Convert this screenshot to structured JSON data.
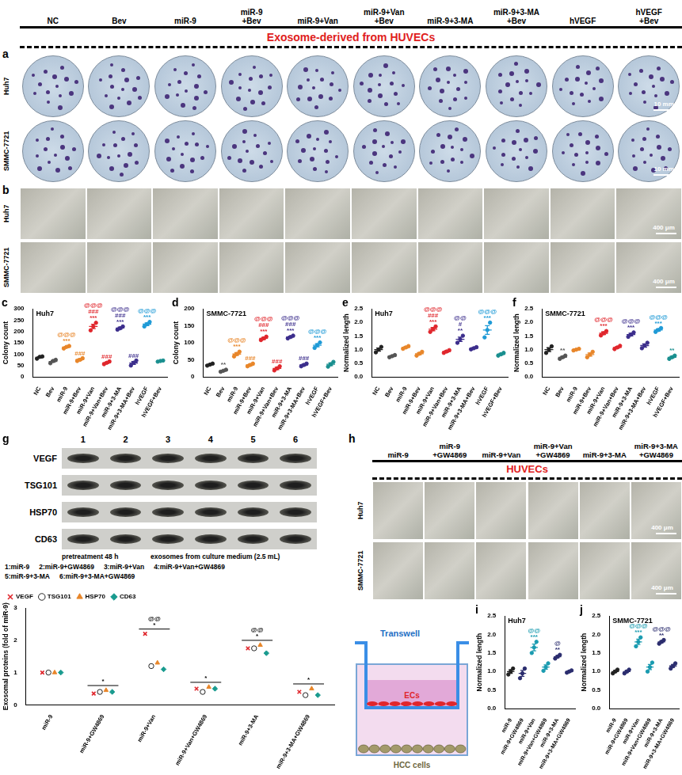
{
  "figure": {
    "groups": [
      "NC",
      "Bev",
      "miR-9",
      "miR-9\n+Bev",
      "miR-9+Van",
      "miR-9+Van\n+Bev",
      "miR-9+3-MA",
      "miR-9+3-MA\n+Bev",
      "hVEGF",
      "hVEGF\n+Bev"
    ],
    "banner": "Exosome-derived from HUVECs",
    "panel_a": {
      "letter": "a",
      "rows": [
        "Huh7",
        "SMMC-7721"
      ],
      "scale_bar": "10 mm"
    },
    "panel_b": {
      "letter": "b",
      "rows": [
        "Huh7",
        "SMMC-7721"
      ],
      "scale_bar": "400 μm"
    },
    "panel_g": {
      "lanes": [
        "1",
        "2",
        "3",
        "4",
        "5",
        "6"
      ],
      "proteins": [
        "VEGF",
        "TSG101",
        "HSP70",
        "CD63"
      ],
      "note": "pretreatment 48 h",
      "note2": "exosomes from culture medium (2.5 mL)",
      "key": [
        "1:miR-9",
        "2:miR-9+GW4869",
        "3:miR-9+Van",
        "4:miR-9+Van+GW4869",
        "5:miR-9+3-MA",
        "6:miR-9+3-MA+GW4869"
      ]
    },
    "panel_h": {
      "letter": "h",
      "groups": [
        "miR-9",
        "miR-9\n+GW4869",
        "miR-9+Van",
        "miR-9+Van\n+GW4869",
        "miR-9+3-MA",
        "miR-9+3-MA\n+GW4869"
      ],
      "banner": "HUVECs",
      "rows": [
        "Huh7",
        "SMMC-7721"
      ],
      "scale_bar": "400 μm",
      "schematic": {
        "transwell": "Transwell",
        "cells_top": "ECs",
        "cells_bottom": "HCC cells"
      }
    }
  },
  "chart_data": [
    {
      "panel": "c",
      "type": "scatter",
      "title": "Huh7",
      "y_label": "Colony count",
      "categories": [
        "NC",
        "Bev",
        "miR-9",
        "miR-9+Bev",
        "miR-9+Van",
        "miR-9+Van+Bev",
        "miR-9+3-MA",
        "miR-9+3-MA+Bev",
        "hVEGF",
        "hVEGF+Bev"
      ],
      "values": [
        86,
        68,
        131,
        76,
        222,
        62,
        215,
        61,
        232,
        70
      ],
      "errors": [
        3,
        4,
        3,
        3.5,
        9.5,
        3.5,
        4,
        6.5,
        6,
        1.5
      ],
      "points": [
        [
          80,
          88,
          90
        ],
        [
          60,
          70,
          75
        ],
        [
          125,
          132,
          136
        ],
        [
          70,
          75,
          82
        ],
        [
          205,
          222,
          238
        ],
        [
          56,
          62,
          68
        ],
        [
          208,
          214,
          222
        ],
        [
          50,
          62,
          72
        ],
        [
          222,
          232,
          242
        ],
        [
          67,
          70,
          72
        ]
      ],
      "colors": [
        "#222222",
        "#555555",
        "#e8862a",
        "#e8862a",
        "#e0262c",
        "#e0262c",
        "#3c2e8c",
        "#3c2e8c",
        "#1f9ad6",
        "#1a8f8f"
      ],
      "annotations": [
        [],
        [],
        [
          "@@@",
          "***"
        ],
        [
          "###"
        ],
        [
          "@@@",
          "###",
          "***"
        ],
        [
          "###"
        ],
        [
          "@@@",
          "###",
          "***"
        ],
        [
          "###"
        ],
        [
          "@@@",
          "***"
        ],
        []
      ],
      "ylim": [
        0,
        300
      ],
      "yticks": [
        0,
        50,
        100,
        150,
        200,
        250,
        300
      ],
      "grid": false
    },
    {
      "panel": "d",
      "type": "scatter",
      "title": "SMMC-7721",
      "y_label": "Colony count",
      "categories": [
        "NC",
        "Bev",
        "miR-9",
        "miR-9+Bev",
        "miR-9+Van",
        "miR-9+Van+Bev",
        "miR-9+3-MA",
        "miR-9+3-MA+Bev",
        "hVEGF",
        "hVEGF+Bev"
      ],
      "values": [
        36,
        18,
        67,
        35,
        113,
        25,
        117,
        35,
        93,
        37
      ],
      "errors": [
        1.7,
        1.7,
        4,
        2.3,
        3,
        3.5,
        2.3,
        2.3,
        4.6,
        4
      ],
      "points": [
        [
          33,
          36,
          39
        ],
        [
          15,
          18,
          21
        ],
        [
          60,
          67,
          74
        ],
        [
          31,
          35,
          39
        ],
        [
          108,
          113,
          118
        ],
        [
          19,
          25,
          31
        ],
        [
          113,
          117,
          121
        ],
        [
          31,
          35,
          39
        ],
        [
          85,
          93,
          101
        ],
        [
          30,
          37,
          44
        ]
      ],
      "colors": [
        "#222222",
        "#555555",
        "#e8862a",
        "#e8862a",
        "#e0262c",
        "#e0262c",
        "#3c2e8c",
        "#3c2e8c",
        "#1f9ad6",
        "#1a8f8f"
      ],
      "annotations": [
        [],
        [
          "**"
        ],
        [
          "@@@",
          "***"
        ],
        [
          "###"
        ],
        [
          "@@@",
          "###",
          "***"
        ],
        [
          "###"
        ],
        [
          "@@@",
          "###",
          "***"
        ],
        [
          "###"
        ],
        [
          "@@@",
          "***"
        ],
        []
      ],
      "ylim": [
        0,
        200
      ],
      "yticks": [
        0,
        50,
        100,
        150,
        200
      ],
      "grid": false
    },
    {
      "panel": "e",
      "type": "scatter",
      "title": "Huh7",
      "y_label": "Normalized length",
      "categories": [
        "NC",
        "Bev",
        "miR-9",
        "miR-9+Bev",
        "miR-9+Van",
        "miR-9+Van+Bev",
        "miR-9+3-MA",
        "miR-9+3-MA+Bev",
        "hVEGF",
        "hVEGF+Bev"
      ],
      "values": [
        1.0,
        0.76,
        1.08,
        0.85,
        1.75,
        0.93,
        1.38,
        1.05,
        1.72,
        0.83
      ],
      "errors": [
        0.06,
        0.02,
        0.03,
        0.04,
        0.06,
        0.03,
        0.08,
        0.02,
        0.16,
        0.03
      ],
      "points": [
        [
          0.9,
          1.0,
          1.1
        ],
        [
          0.72,
          0.76,
          0.8
        ],
        [
          1.03,
          1.08,
          1.13
        ],
        [
          0.78,
          0.85,
          0.92
        ],
        [
          1.65,
          1.75,
          1.85
        ],
        [
          0.88,
          0.93,
          0.98
        ],
        [
          1.25,
          1.38,
          1.51
        ],
        [
          1.01,
          1.05,
          1.09
        ],
        [
          1.45,
          1.72,
          1.99
        ],
        [
          0.78,
          0.83,
          0.88
        ]
      ],
      "colors": [
        "#222222",
        "#555555",
        "#e8862a",
        "#e8862a",
        "#e0262c",
        "#e0262c",
        "#3c2e8c",
        "#3c2e8c",
        "#1f9ad6",
        "#1a8f8f"
      ],
      "annotations": [
        [],
        [],
        [],
        [],
        [
          "@@@",
          "###",
          "***"
        ],
        [],
        [
          "@@",
          "#",
          "**"
        ],
        [],
        [
          "@@@",
          "***"
        ],
        []
      ],
      "ylim": [
        0,
        2.5
      ],
      "yticks": [
        {
          "value": 0,
          "label": "0.0"
        },
        0.5,
        {
          "value": 1,
          "label": "1.0"
        },
        1.5,
        {
          "value": 2,
          "label": "2.0"
        },
        2.5
      ],
      "grid": false
    },
    {
      "panel": "f",
      "type": "scatter",
      "title": "SMMC-7721",
      "y_label": "Normalized length",
      "categories": [
        "NC",
        "Bev",
        "miR-9",
        "miR-9+Bev",
        "miR-9+Van",
        "miR-9+Van+Bev",
        "miR-9+3-MA",
        "miR-9+3-MA+Bev",
        "hVEGF",
        "hVEGF+Bev"
      ],
      "values": [
        1.0,
        0.72,
        1.0,
        0.82,
        1.6,
        1.08,
        1.55,
        1.15,
        1.72,
        0.72
      ],
      "errors": [
        0.07,
        0.03,
        0.02,
        0.06,
        0.05,
        0.03,
        0.05,
        0.06,
        0.04,
        0.03
      ],
      "points": [
        [
          0.88,
          1.0,
          1.12
        ],
        [
          0.66,
          0.72,
          0.78
        ],
        [
          0.97,
          1.0,
          1.03
        ],
        [
          0.72,
          0.82,
          0.92
        ],
        [
          1.52,
          1.6,
          1.68
        ],
        [
          1.02,
          1.08,
          1.14
        ],
        [
          1.47,
          1.55,
          1.63
        ],
        [
          1.05,
          1.15,
          1.25
        ],
        [
          1.65,
          1.72,
          1.79
        ],
        [
          0.66,
          0.72,
          0.78
        ]
      ],
      "colors": [
        "#222222",
        "#555555",
        "#e8862a",
        "#e8862a",
        "#e0262c",
        "#e0262c",
        "#3c2e8c",
        "#3c2e8c",
        "#1f9ad6",
        "#1a8f8f"
      ],
      "annotations": [
        [],
        [
          "**"
        ],
        [],
        [],
        [
          "@@@",
          "***"
        ],
        [],
        [
          "@@@",
          "***"
        ],
        [],
        [
          "@@@",
          "***"
        ],
        [
          "**"
        ]
      ],
      "ylim": [
        0,
        2.5
      ],
      "yticks": [
        {
          "value": 0,
          "label": "0.0"
        },
        0.5,
        {
          "value": 1,
          "label": "1.0"
        },
        1.5,
        {
          "value": 2,
          "label": "2.0"
        },
        2.5
      ],
      "grid": false
    },
    {
      "panel": "g",
      "type": "scatter",
      "y_label": "Exosomal proteins (fold of miR-9)",
      "categories": [
        "miR-9",
        "miR-9+GW4869",
        "miR-9+Van",
        "miR-9+Van+GW4869",
        "miR-9+3-MA",
        "miR-9+3-MA+GW4869"
      ],
      "series": [
        {
          "name": "VEGF",
          "color": "#e0262c",
          "marker": "cross",
          "values": [
            1.0,
            0.35,
            2.2,
            0.5,
            1.75,
            0.4
          ]
        },
        {
          "name": "TSG101",
          "color": "#222222",
          "marker": "open_circle",
          "values": [
            1.0,
            0.4,
            1.2,
            0.4,
            1.75,
            0.3
          ]
        },
        {
          "name": "HSP70",
          "color": "#e8862a",
          "marker": "triangle",
          "values": [
            1.0,
            0.45,
            1.3,
            0.55,
            1.85,
            0.5
          ]
        },
        {
          "name": "CD63",
          "color": "#1a9b8f",
          "marker": "diamond",
          "values": [
            1.0,
            0.4,
            1.1,
            0.5,
            1.6,
            0.3
          ]
        }
      ],
      "annotations": [
        [],
        [
          "*"
        ],
        [
          "@@",
          "*"
        ],
        [
          "*"
        ],
        [
          "@@",
          "*"
        ],
        [
          "*"
        ]
      ],
      "ylim": [
        0,
        3
      ],
      "yticks": [
        0,
        1,
        2,
        3
      ],
      "grid": false,
      "legend": "top-left"
    },
    {
      "panel": "i",
      "type": "scatter",
      "title": "Huh7",
      "y_label": "Normalized length",
      "categories": [
        "miR-9",
        "miR-9+GW4869",
        "miR-9+Van",
        "miR-9+Van+GW4869",
        "miR-9+3-MA",
        "miR-9+3-MA+GW4869"
      ],
      "values": [
        1.0,
        0.95,
        1.65,
        1.12,
        1.4,
        1.0
      ],
      "errors": [
        0.05,
        0.08,
        0.09,
        0.06,
        0.03,
        0.02
      ],
      "points": [
        [
          0.92,
          1.0,
          1.08
        ],
        [
          0.82,
          0.95,
          1.08
        ],
        [
          1.5,
          1.65,
          1.8
        ],
        [
          1.02,
          1.12,
          1.22
        ],
        [
          1.35,
          1.4,
          1.45
        ],
        [
          0.97,
          1.0,
          1.03
        ]
      ],
      "colors": [
        "#222222",
        "#2b2d6e",
        "#1a9bb0",
        "#1a9bb0",
        "#2b2d6e",
        "#2b2d6e"
      ],
      "annotations": [
        [],
        [],
        [
          "@@",
          "***"
        ],
        [],
        [
          "@",
          "**"
        ],
        []
      ],
      "ylim": [
        0,
        2.5
      ],
      "yticks": [
        {
          "value": 0,
          "label": "0.0"
        },
        0.5,
        {
          "value": 1,
          "label": "1.0"
        },
        1.5,
        {
          "value": 2,
          "label": "2.0"
        },
        2.5
      ],
      "grid": false
    },
    {
      "panel": "j",
      "type": "scatter",
      "title": "SMMC-7721",
      "y_label": "Normalized length",
      "categories": [
        "miR-9",
        "miR-9+GW4869",
        "miR-9+Van",
        "miR-9+Van+GW4869",
        "miR-9+3-MA",
        "miR-9+3-MA+GW4869"
      ],
      "values": [
        1.0,
        1.0,
        1.8,
        1.12,
        1.8,
        1.15
      ],
      "errors": [
        0.03,
        0.03,
        0.07,
        0.07,
        0.03,
        0.04
      ],
      "points": [
        [
          0.95,
          1.0,
          1.05
        ],
        [
          0.95,
          1.0,
          1.05
        ],
        [
          1.68,
          1.8,
          1.92
        ],
        [
          1.0,
          1.12,
          1.24
        ],
        [
          1.75,
          1.8,
          1.85
        ],
        [
          1.08,
          1.15,
          1.22
        ]
      ],
      "colors": [
        "#222222",
        "#2b2d6e",
        "#1a9bb0",
        "#1a9bb0",
        "#2b2d6e",
        "#2b2d6e"
      ],
      "annotations": [
        [],
        [],
        [
          "@@@",
          "***"
        ],
        [],
        [
          "@@@",
          "**"
        ],
        []
      ],
      "ylim": [
        0,
        2.5
      ],
      "yticks": [
        {
          "value": 0,
          "label": "0.0"
        },
        0.5,
        {
          "value": 1,
          "label": "1.0"
        },
        1.5,
        {
          "value": 2,
          "label": "2.0"
        },
        2.5
      ],
      "grid": false
    }
  ]
}
